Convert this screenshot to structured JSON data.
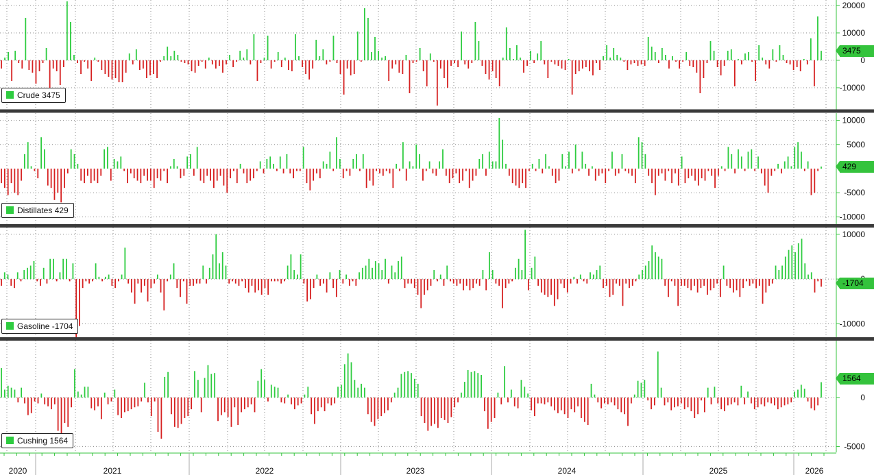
{
  "chart_data": [
    {
      "type": "bar",
      "label": "Crude",
      "latest": "3475",
      "y_ticks": [
        -10000,
        0,
        10000,
        20000
      ],
      "ylim": [
        -18000,
        22000
      ],
      "positive_color": "#2ecc40",
      "negative_color": "#d62020",
      "values": [
        -3000,
        1000,
        3000,
        -7500,
        3500,
        -1000,
        -3000,
        15500,
        -3500,
        -4500,
        -8500,
        -4000,
        -1000,
        4500,
        -10000,
        -3000,
        -4000,
        -9000,
        -2500,
        21500,
        14000,
        2000,
        -1000,
        -5000,
        -500,
        -3000,
        -7500,
        1000,
        -500,
        -3500,
        -5000,
        -6000,
        -7000,
        -6500,
        -8000,
        -8000,
        -4500,
        2500,
        -1500,
        4000,
        -3500,
        -3000,
        -6500,
        -5500,
        -5000,
        -6500,
        -500,
        1500,
        5000,
        1500,
        3500,
        2000,
        -500,
        -1000,
        -1500,
        -4000,
        -4500,
        -2000,
        -500,
        -3000,
        1000,
        -1500,
        -3000,
        -2000,
        -4500,
        -1500,
        2000,
        -2500,
        -500,
        3500,
        1000,
        4000,
        -1500,
        9500,
        -7500,
        -1000,
        1000,
        9000,
        -3000,
        -500,
        3000,
        -2500,
        1000,
        -3500,
        -4000,
        9500,
        1500,
        -2500,
        -5000,
        -7000,
        -3000,
        7500,
        1500,
        4000,
        -1500,
        -500,
        9000,
        -1000,
        -5000,
        -12500,
        -3000,
        -5500,
        -5000,
        10500,
        -500,
        19000,
        15500,
        3000,
        8500,
        3500,
        1000,
        1500,
        -7500,
        -3000,
        -1500,
        -4500,
        -5000,
        2000,
        -12000,
        -1000,
        -500,
        4500,
        -4000,
        -9500,
        2500,
        -500,
        -16500,
        -3000,
        -6500,
        -10000,
        -2000,
        -1000,
        -2500,
        10500,
        -1500,
        -3000,
        -1000,
        14000,
        7000,
        -2000,
        -5000,
        -7000,
        -4000,
        -6500,
        -9500,
        1000,
        12000,
        4500,
        500,
        5500,
        1000,
        -4500,
        -2000,
        3500,
        -1000,
        2500,
        7000,
        -1500,
        -6500,
        -500,
        -1500,
        -2000,
        -3000,
        -3500,
        500,
        -12500,
        -5000,
        -4000,
        -3000,
        -2500,
        -4000,
        -5500,
        -1000,
        -3500,
        1500,
        5500,
        1000,
        4500,
        2000,
        1000,
        -500,
        -3500,
        -1500,
        -1000,
        -2000,
        -1500,
        -2000,
        8500,
        5000,
        3000,
        -1000,
        4500,
        2000,
        -3000,
        1500,
        -500,
        -3000,
        -500,
        3000,
        -2000,
        -2500,
        -4500,
        -12000,
        -6500,
        -1000,
        7000,
        3500,
        -2500,
        -5500,
        -2000,
        3500,
        4000,
        -9500,
        500,
        -1500,
        2500,
        3000,
        -500,
        -7500,
        5500,
        1000,
        -1500,
        -3000,
        4000,
        -500,
        5500,
        2000,
        -1000,
        -1500,
        -3500,
        -2500,
        -4000,
        500,
        -1500,
        8000,
        -9500,
        16000,
        3475
      ]
    },
    {
      "type": "bar",
      "label": "Distillates",
      "latest": "429",
      "y_ticks": [
        -10000,
        -5000,
        5000,
        10000
      ],
      "ylim": [
        -11500,
        11500
      ],
      "positive_color": "#2ecc40",
      "negative_color": "#d62020",
      "values": [
        -3000,
        -4000,
        -5500,
        -3000,
        -5000,
        -5500,
        -2500,
        3000,
        5500,
        500,
        -500,
        -2000,
        6500,
        4000,
        -3500,
        -4000,
        -6500,
        -5000,
        -7000,
        -4000,
        -1000,
        4000,
        3000,
        1000,
        -2500,
        -3000,
        -1500,
        -3000,
        -2500,
        -3000,
        -1500,
        4000,
        4500,
        -2500,
        2000,
        1500,
        2500,
        -500,
        -3000,
        -1000,
        -2000,
        -2500,
        -3000,
        -1500,
        -2500,
        -2500,
        -4000,
        -2000,
        -2500,
        -500,
        -3000,
        500,
        2000,
        500,
        -2000,
        -1500,
        2500,
        3000,
        -1500,
        4500,
        -2500,
        -3000,
        -1500,
        -2500,
        -4000,
        -2500,
        -1500,
        -3500,
        -5000,
        -2000,
        -500,
        -3000,
        1000,
        -1000,
        -3000,
        -2500,
        -2000,
        -500,
        1500,
        -1000,
        2000,
        2500,
        1000,
        -500,
        2500,
        -1000,
        3000,
        -1000,
        -2000,
        -500,
        -500,
        4500,
        -3000,
        -4500,
        -2500,
        -1000,
        -2000,
        1500,
        1000,
        3500,
        -500,
        6500,
        2000,
        -2000,
        -500,
        -1500,
        2000,
        3000,
        -500,
        3000,
        -4000,
        -2500,
        -3500,
        -500,
        -1000,
        -1500,
        -500,
        -1000,
        -4000,
        1000,
        -500,
        5500,
        -2500,
        1500,
        500,
        5000,
        3000,
        -2500,
        -500,
        1500,
        -1000,
        -1500,
        1500,
        4000,
        -1500,
        -3000,
        -2000,
        -1000,
        -3000,
        -2500,
        -500,
        -4000,
        -2500,
        -1500,
        2000,
        3000,
        -1500,
        3500,
        1500,
        1500,
        10500,
        6000,
        1000,
        -1500,
        -3000,
        -3500,
        -4000,
        -3000,
        -4000,
        -500,
        1000,
        -500,
        2000,
        -1000,
        3000,
        500,
        -1500,
        -3000,
        -2500,
        3000,
        500,
        3500,
        -1000,
        5000,
        -500,
        3500,
        1000,
        -1500,
        500,
        -2500,
        -1500,
        -1000,
        -3000,
        -500,
        3500,
        -1500,
        -1000,
        3000,
        -500,
        -1000,
        -1500,
        -3000,
        6500,
        5500,
        3000,
        -1500,
        -3000,
        -5500,
        -1500,
        -1000,
        -2500,
        -500,
        -3000,
        -1000,
        -3500,
        2500,
        -3000,
        -2000,
        -1500,
        -2500,
        -3500,
        -2000,
        -2500,
        -500,
        -1500,
        -4000,
        -1500,
        500,
        -500,
        4500,
        3000,
        -1000,
        4000,
        2500,
        -500,
        3500,
        4000,
        -500,
        2500,
        -1000,
        -3500,
        -5000,
        -1500,
        -500,
        1000,
        -1000,
        1500,
        2500,
        500,
        4500,
        5500,
        3500,
        -500,
        1500,
        -5500,
        -5000,
        -500,
        429
      ]
    },
    {
      "type": "bar",
      "label": "Gasoline",
      "latest": "-1704",
      "y_ticks": [
        -10000,
        0,
        10000
      ],
      "ylim": [
        -13000,
        11500
      ],
      "positive_color": "#2ecc40",
      "negative_color": "#d62020",
      "values": [
        -1500,
        1500,
        1000,
        -1500,
        -2000,
        1500,
        -500,
        2000,
        2500,
        3000,
        4000,
        -500,
        -1500,
        2500,
        -1000,
        4500,
        4500,
        -500,
        1500,
        4500,
        4500,
        -500,
        3500,
        -13500,
        -10500,
        -2000,
        -500,
        -1000,
        -500,
        3500,
        500,
        -500,
        500,
        1000,
        -1500,
        -2000,
        -500,
        1000,
        7000,
        -1000,
        -3000,
        -5500,
        -1000,
        -3000,
        -1500,
        -5000,
        -2000,
        -1000,
        1000,
        -3000,
        -7000,
        -500,
        1000,
        3500,
        -2000,
        -4000,
        -500,
        -5500,
        -1500,
        -1500,
        -1000,
        -1000,
        3000,
        -1000,
        2500,
        5500,
        10000,
        3500,
        6000,
        3000,
        -1000,
        -500,
        -1000,
        -1500,
        -500,
        -2000,
        -3000,
        -1500,
        -3000,
        -2500,
        -3500,
        -2000,
        -3500,
        -500,
        -500,
        -500,
        -1000,
        -500,
        3000,
        5500,
        2000,
        1000,
        5500,
        -1000,
        -5000,
        -4500,
        -2000,
        1000,
        -1500,
        -1000,
        -3000,
        1500,
        -2000,
        -4000,
        2000,
        -1000,
        1000,
        -1500,
        -500,
        -1500,
        1500,
        2500,
        3000,
        4500,
        2500,
        4000,
        3500,
        2000,
        4500,
        -1000,
        3000,
        1500,
        4000,
        5000,
        -2000,
        -1000,
        -1000,
        -2000,
        -3500,
        -6500,
        -3500,
        -2500,
        -1500,
        2000,
        -500,
        1000,
        -1500,
        3000,
        -500,
        -1000,
        -1500,
        -1000,
        -2500,
        -1500,
        -2500,
        -2000,
        -1000,
        -1500,
        2000,
        -2500,
        6000,
        2000,
        -1000,
        -1500,
        -6500,
        -2000,
        -1000,
        -500,
        2500,
        4500,
        2000,
        11000,
        -2500,
        2500,
        5000,
        -1500,
        -3000,
        -3500,
        -4000,
        -3500,
        -6000,
        -4500,
        -1000,
        -2000,
        -3000,
        -1000,
        500,
        -1000,
        1000,
        -500,
        -1000,
        1500,
        1000,
        2000,
        3000,
        -2000,
        -1500,
        -4000,
        -3500,
        -1000,
        -1500,
        -6000,
        -1000,
        -2000,
        -1500,
        -500,
        1000,
        2000,
        3000,
        4000,
        7500,
        6000,
        5000,
        4500,
        -1500,
        -4000,
        -500,
        -1500,
        -6000,
        -1500,
        -1500,
        -2000,
        -2500,
        -1500,
        -3000,
        -2000,
        -1500,
        -3500,
        -2500,
        -2000,
        -1000,
        -4000,
        3000,
        -1500,
        -2000,
        -3000,
        -2500,
        -4000,
        -2000,
        -500,
        -1500,
        -1000,
        -2000,
        -1500,
        -5500,
        -3000,
        -1500,
        -1000,
        3000,
        2000,
        3000,
        5000,
        6500,
        7500,
        6000,
        8000,
        9000,
        3500,
        1000,
        1500,
        -3000,
        -500,
        -1704
      ]
    },
    {
      "type": "bar",
      "label": "Cushing",
      "latest": "1564",
      "y_ticks": [
        -5000,
        0
      ],
      "ylim": [
        -5600,
        5800
      ],
      "positive_color": "#2ecc40",
      "negative_color": "#d62020",
      "values": [
        3000,
        800,
        1200,
        1000,
        800,
        -500,
        1000,
        -600,
        -1800,
        -1600,
        -400,
        -600,
        400,
        -700,
        -900,
        -1200,
        -700,
        -3400,
        -3800,
        -2600,
        -3000,
        -1000,
        2900,
        600,
        300,
        1100,
        1100,
        -1100,
        -1300,
        -900,
        -2200,
        500,
        -700,
        -400,
        800,
        -1800,
        -2100,
        -1500,
        -1400,
        -1200,
        -1000,
        -900,
        -400,
        1500,
        -500,
        -1900,
        -400,
        -3500,
        -4200,
        2100,
        2600,
        -1700,
        -3000,
        -3100,
        -2700,
        -2100,
        -1900,
        -1200,
        2700,
        1800,
        -1500,
        2000,
        3300,
        2400,
        2500,
        -2400,
        -1800,
        -1500,
        -2000,
        -3000,
        -1000,
        -2800,
        -1500,
        -1200,
        -1000,
        -700,
        -1500,
        1700,
        2900,
        1800,
        -400,
        1300,
        1100,
        1000,
        -500,
        -600,
        300,
        -700,
        -1200,
        -800,
        -600,
        300,
        1100,
        -1700,
        -2700,
        -1400,
        -1000,
        -1400,
        -600,
        -800,
        -600,
        1100,
        1300,
        3400,
        4500,
        3600,
        1800,
        1000,
        1400,
        1000,
        -1700,
        -2500,
        -2900,
        -2200,
        -1900,
        -1600,
        -1300,
        -500,
        500,
        1000,
        2400,
        2600,
        2700,
        2500,
        1900,
        1400,
        -1900,
        -2600,
        -3400,
        -2900,
        -2700,
        -3100,
        -2100,
        -2300,
        -2600,
        -2000,
        -1000,
        -500,
        500,
        1600,
        2800,
        2600,
        2700,
        2500,
        2300,
        -1400,
        -3200,
        -2500,
        -2100,
        500,
        -700,
        3200,
        -500,
        800,
        -900,
        -1100,
        1800,
        1100,
        400,
        -1300,
        -1900,
        -600,
        -600,
        -700,
        -500,
        -900,
        -1300,
        -1600,
        -1300,
        -1700,
        -2100,
        -1200,
        -1500,
        -900,
        -2100,
        -2500,
        -2800,
        1400,
        300,
        -500,
        -1100,
        -600,
        -700,
        -500,
        -800,
        -1200,
        -1500,
        -1700,
        -2900,
        -600,
        300,
        1700,
        1500,
        1800,
        -300,
        -1200,
        -800,
        4700,
        1000,
        -800,
        -500,
        -1300,
        -1000,
        -900,
        -600,
        -1200,
        -1000,
        -1400,
        -2100,
        -1700,
        -300,
        -1500,
        1000,
        -700,
        1100,
        -600,
        -1200,
        -1400,
        -800,
        -700,
        -500,
        -800,
        1200,
        -700,
        600,
        -600,
        -1200,
        -1000,
        -700,
        -900,
        -500,
        -600,
        -800,
        -1200,
        -1000,
        -800,
        -700,
        -500,
        600,
        800,
        1300,
        900,
        -400,
        -1100,
        -1300,
        -800,
        1564
      ]
    }
  ],
  "x_axis": {
    "year_labels": [
      "2020",
      "2021",
      "2022",
      "2023",
      "2024",
      "2025",
      "2026"
    ]
  }
}
